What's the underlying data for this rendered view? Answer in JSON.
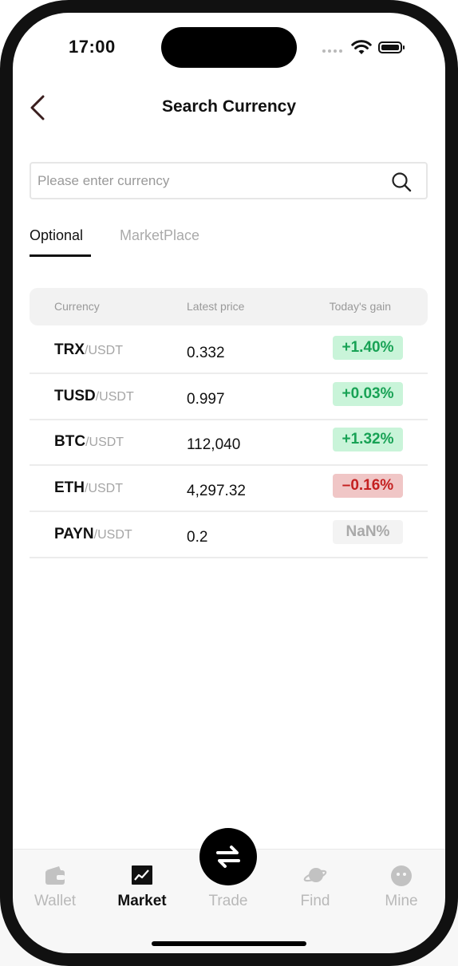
{
  "status_bar": {
    "time": "17:00"
  },
  "header": {
    "title": "Search Currency"
  },
  "search": {
    "placeholder": "Please enter currency"
  },
  "tabs": [
    {
      "label": "Optional",
      "active": true
    },
    {
      "label": "MarketPlace",
      "active": false
    }
  ],
  "table": {
    "columns": [
      "Currency",
      "Latest price",
      "Today's gain"
    ],
    "rows": [
      {
        "symbol": "TRX",
        "pair": "/USDT",
        "price": "0.332",
        "gain": "+1.40%",
        "trend": "up"
      },
      {
        "symbol": "TUSD",
        "pair": "/USDT",
        "price": "0.997",
        "gain": "+0.03%",
        "trend": "up"
      },
      {
        "symbol": "BTC",
        "pair": "/USDT",
        "price": "112,040",
        "gain": "+1.32%",
        "trend": "up"
      },
      {
        "symbol": "ETH",
        "pair": "/USDT",
        "price": "4,297.32",
        "gain": "–0.16%",
        "trend": "down"
      },
      {
        "symbol": "PAYN",
        "pair": "/USDT",
        "price": "0.2",
        "gain": "NaN%",
        "trend": "flat"
      }
    ]
  },
  "bottom_nav": [
    {
      "label": "Wallet",
      "icon": "wallet-icon",
      "active": false
    },
    {
      "label": "Market",
      "icon": "chart-icon",
      "active": true
    },
    {
      "label": "Trade",
      "icon": "swap-icon",
      "active": false
    },
    {
      "label": "Find",
      "icon": "planet-icon",
      "active": false
    },
    {
      "label": "Mine",
      "icon": "face-icon",
      "active": false
    }
  ],
  "colors": {
    "gain_up": "#18a255",
    "gain_down": "#c42020",
    "gain_flat": "#a9a9a9"
  }
}
